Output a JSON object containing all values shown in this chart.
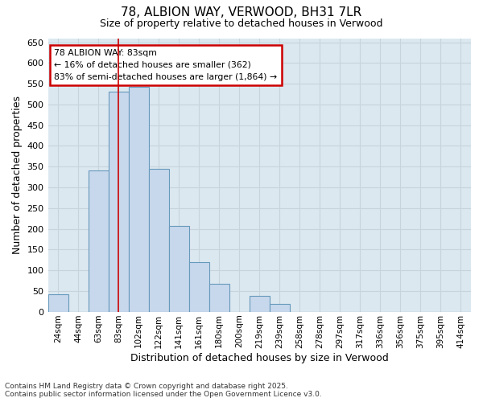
{
  "title_line1": "78, ALBION WAY, VERWOOD, BH31 7LR",
  "title_line2": "Size of property relative to detached houses in Verwood",
  "xlabel": "Distribution of detached houses by size in Verwood",
  "ylabel": "Number of detached properties",
  "annotation_title": "78 ALBION WAY: 83sqm",
  "annotation_line2": "← 16% of detached houses are smaller (362)",
  "annotation_line3": "83% of semi-detached houses are larger (1,864) →",
  "footer_line1": "Contains HM Land Registry data © Crown copyright and database right 2025.",
  "footer_line2": "Contains public sector information licensed under the Open Government Licence v3.0.",
  "bar_color": "#c8d8ec",
  "bar_edge_color": "#6699bb",
  "grid_color": "#c8d4dc",
  "plot_bg_color": "#dce8f0",
  "fig_bg_color": "#ffffff",
  "vline_color": "#cc0000",
  "annotation_box_edgecolor": "#cc0000",
  "annotation_box_facecolor": "#ffffff",
  "categories": [
    "24sqm",
    "44sqm",
    "63sqm",
    "83sqm",
    "102sqm",
    "122sqm",
    "141sqm",
    "161sqm",
    "180sqm",
    "200sqm",
    "219sqm",
    "239sqm",
    "258sqm",
    "278sqm",
    "297sqm",
    "317sqm",
    "336sqm",
    "356sqm",
    "375sqm",
    "395sqm",
    "414sqm"
  ],
  "values": [
    42,
    0,
    340,
    530,
    542,
    345,
    207,
    120,
    68,
    0,
    38,
    18,
    0,
    0,
    0,
    0,
    0,
    0,
    0,
    0,
    0
  ],
  "vline_index": 3,
  "ylim_max": 660,
  "yticks": [
    0,
    50,
    100,
    150,
    200,
    250,
    300,
    350,
    400,
    450,
    500,
    550,
    600,
    650
  ]
}
